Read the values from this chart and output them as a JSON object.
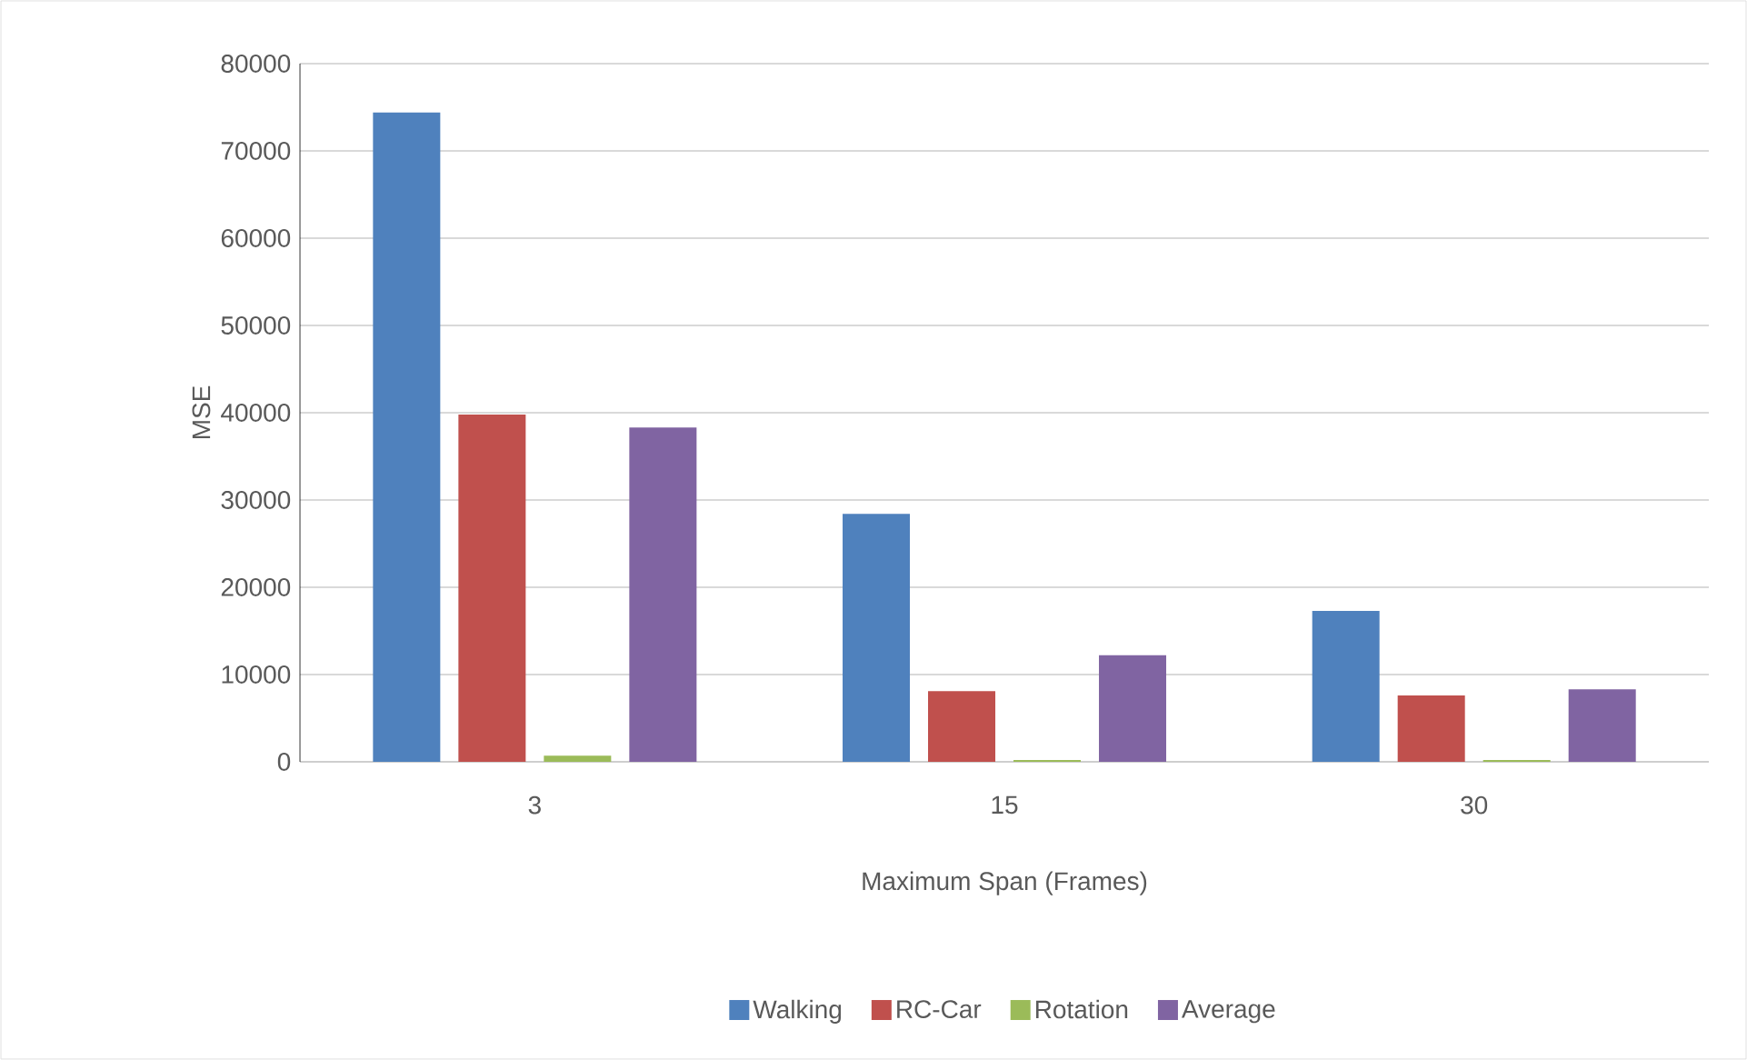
{
  "chart_data": {
    "type": "bar",
    "xlabel": "Maximum Span (Frames)",
    "ylabel": "MSE",
    "categories": [
      "3",
      "15",
      "30"
    ],
    "series": [
      {
        "name": "Walking",
        "color": "#4f81bd",
        "values": [
          74400,
          28400,
          17300
        ]
      },
      {
        "name": "RC-Car",
        "color": "#c0504d",
        "values": [
          39800,
          8100,
          7600
        ]
      },
      {
        "name": "Rotation",
        "color": "#9bbb59",
        "values": [
          700,
          200,
          200
        ]
      },
      {
        "name": "Average",
        "color": "#8064a2",
        "values": [
          38300,
          12200,
          8300
        ]
      }
    ],
    "ylim": [
      0,
      80000
    ],
    "yticks": [
      0,
      10000,
      20000,
      30000,
      40000,
      50000,
      60000,
      70000,
      80000
    ],
    "grid": "y",
    "legend": "bottom"
  }
}
